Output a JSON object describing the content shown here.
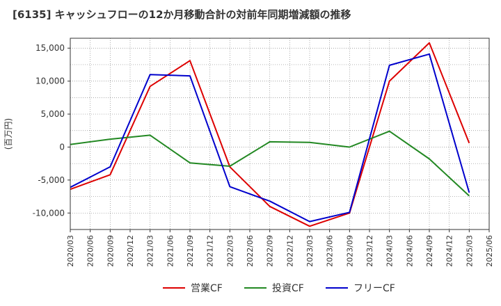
{
  "chart_data": {
    "type": "line",
    "title": "[6135]  キャッシュフローの12か月移動合計の対前年同期増減額の推移",
    "xlabel": "",
    "ylabel": "(百万円)",
    "ylim": [
      -12500,
      16500
    ],
    "yticks": [
      -10000,
      -5000,
      0,
      5000,
      10000,
      15000
    ],
    "ytick_labels": [
      "-10,000",
      "-5,000",
      "0",
      "5,000",
      "10,000",
      "15,000"
    ],
    "grid": true,
    "legend_position": "bottom",
    "x": [
      "2020/03",
      "2020/06",
      "2020/09",
      "2020/12",
      "2021/03",
      "2021/06",
      "2021/09",
      "2021/12",
      "2022/03",
      "2022/06",
      "2022/09",
      "2022/12",
      "2023/03",
      "2023/06",
      "2023/09",
      "2023/12",
      "2024/03",
      "2024/06",
      "2024/09",
      "2024/12",
      "2025/03",
      "2025/06"
    ],
    "series": [
      {
        "name": "営業CF",
        "color": "#dd0000",
        "values": [
          -6400,
          null,
          -4200,
          null,
          9200,
          null,
          13100,
          null,
          -3000,
          null,
          -9000,
          null,
          -12000,
          null,
          -10000,
          null,
          10000,
          null,
          15800,
          null,
          600,
          null
        ]
      },
      {
        "name": "投資CF",
        "color": "#228822",
        "values": [
          400,
          null,
          1200,
          null,
          1800,
          null,
          -2400,
          null,
          -2900,
          null,
          800,
          null,
          700,
          null,
          0,
          null,
          2400,
          null,
          -1800,
          null,
          -7400,
          null
        ]
      },
      {
        "name": "フリーCF",
        "color": "#0000cc",
        "values": [
          -6100,
          null,
          -3000,
          null,
          11000,
          null,
          10800,
          null,
          -6000,
          null,
          -8200,
          null,
          -11300,
          null,
          -9900,
          null,
          12400,
          null,
          14100,
          null,
          -6900,
          null
        ]
      }
    ]
  }
}
